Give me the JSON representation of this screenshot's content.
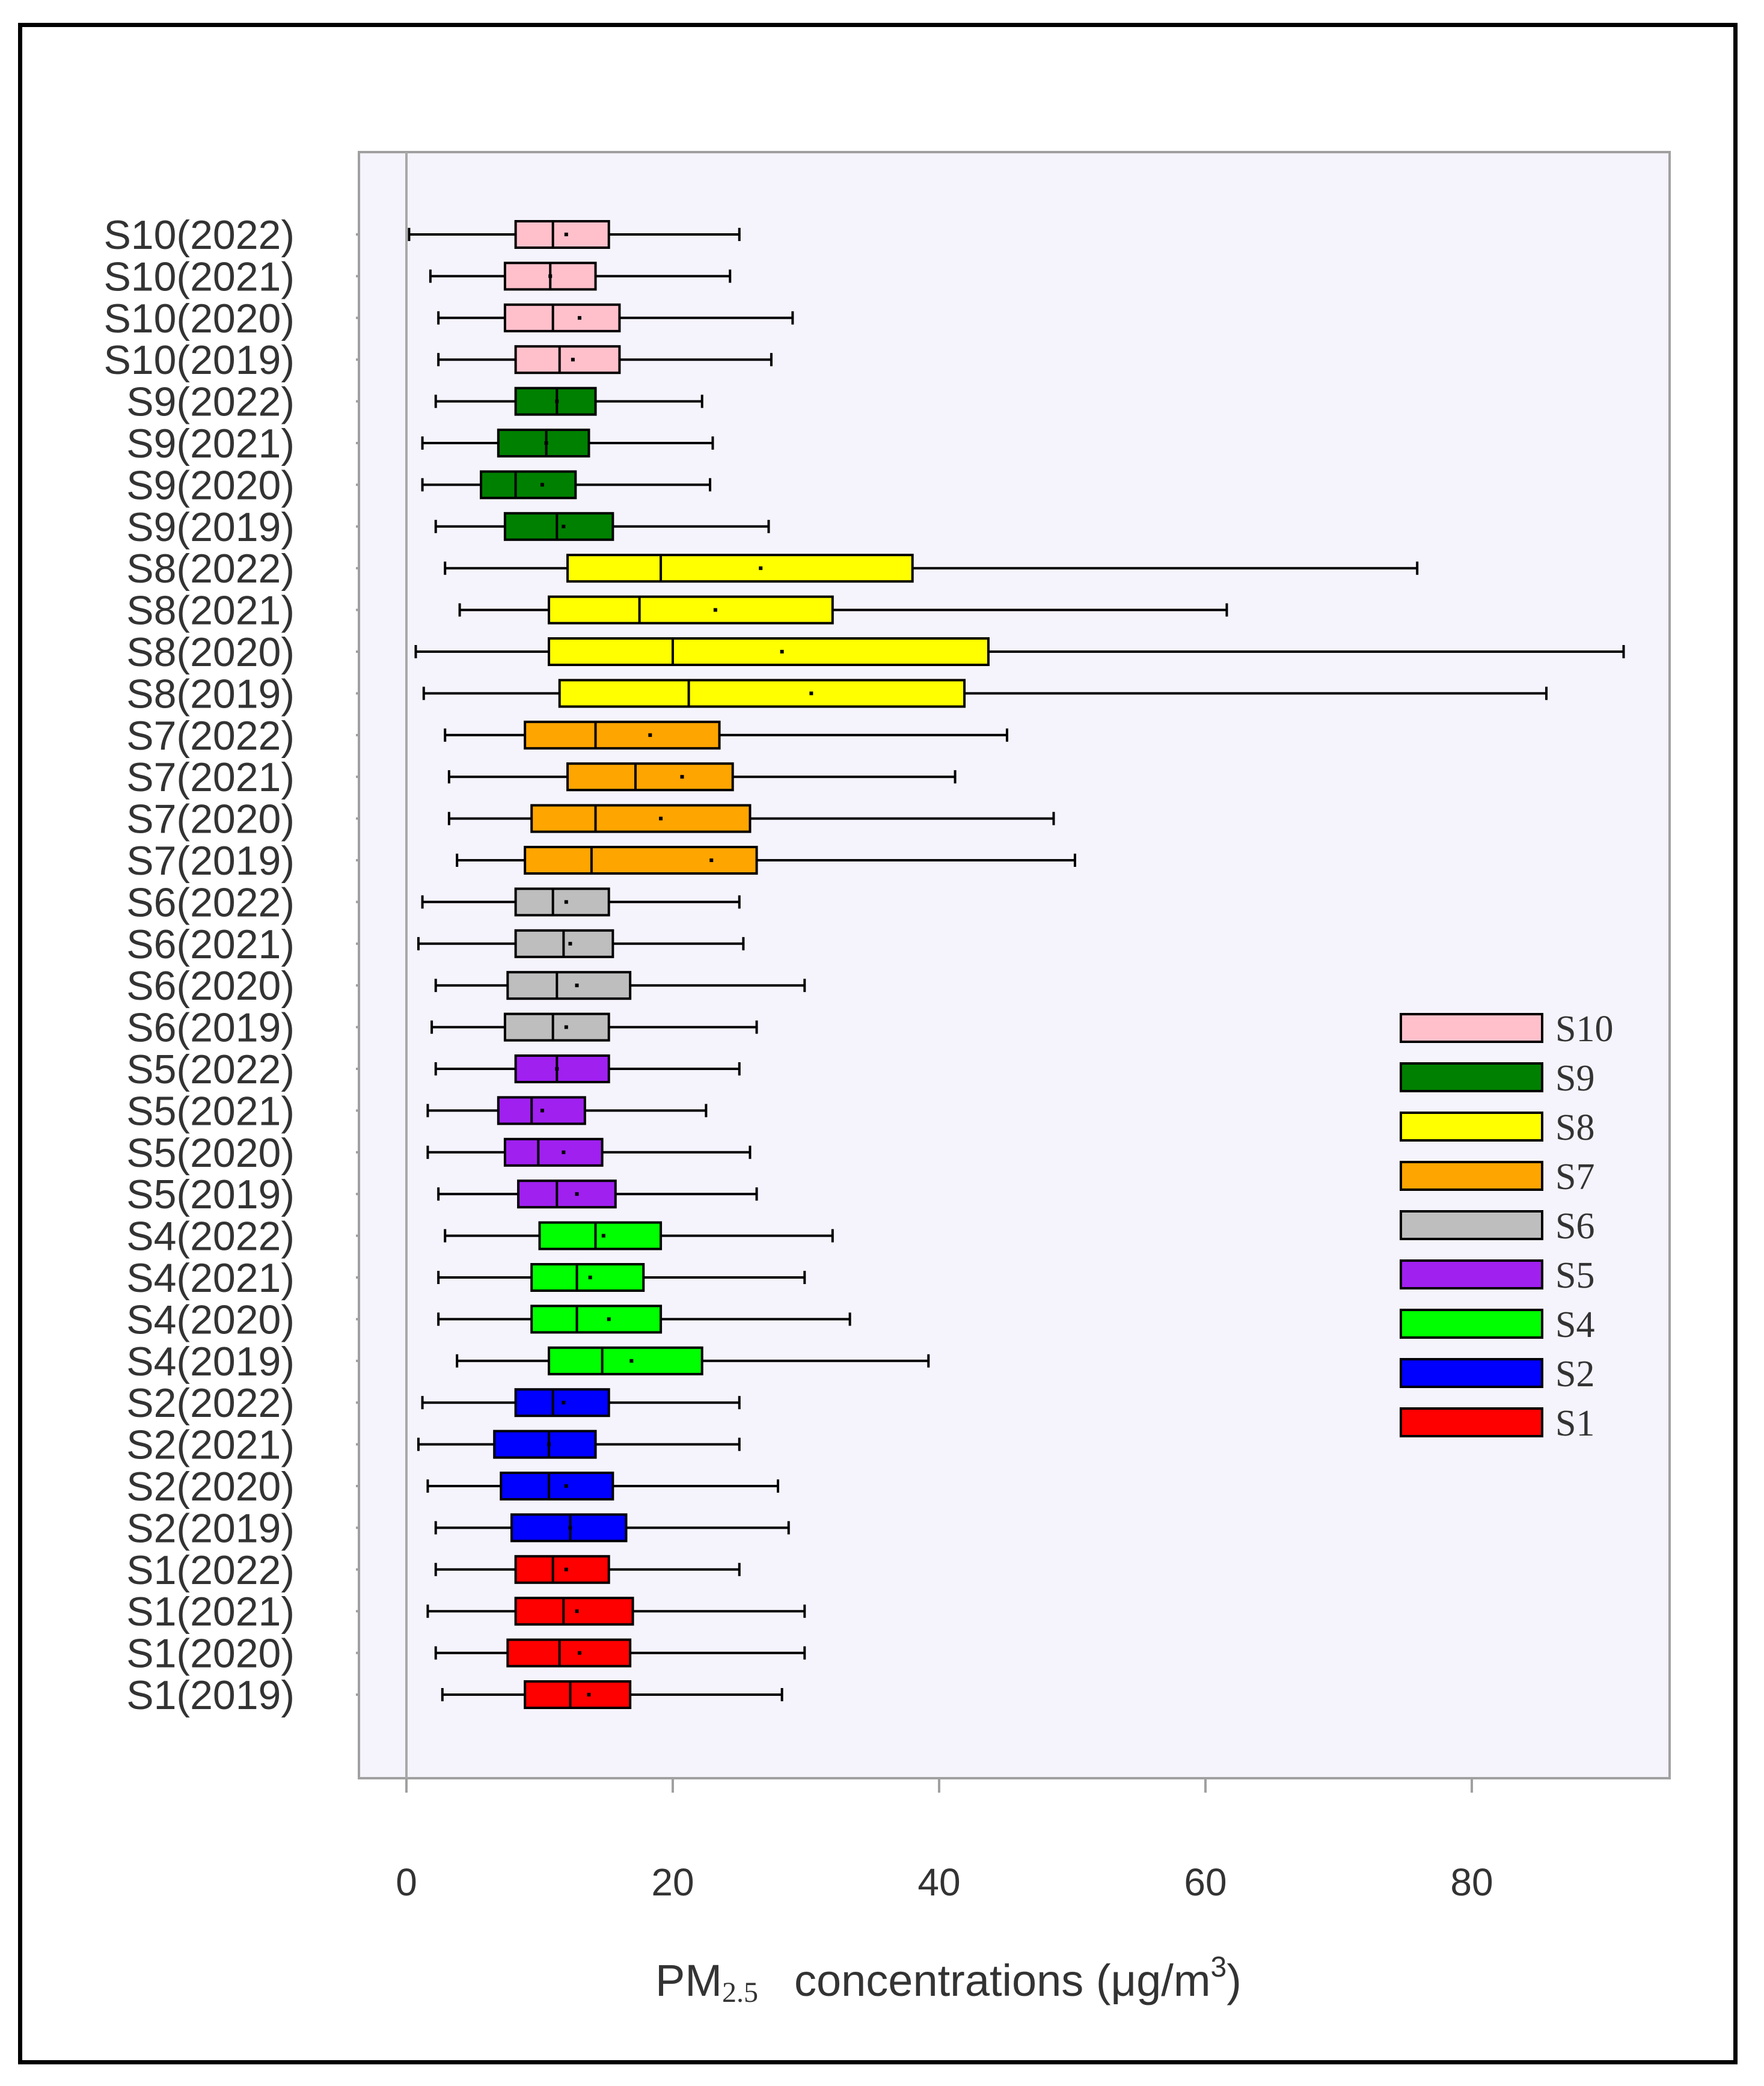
{
  "chart_data": {
    "type": "boxplot",
    "orientation": "horizontal",
    "xlabel": {
      "prefix": "PM",
      "subscript": "2.5",
      "text": "concentrations (μg/m",
      "superscript": "3",
      "suffix": ")"
    },
    "xlim": [
      0,
      92
    ],
    "xticks": [
      0,
      20,
      40,
      60,
      80
    ],
    "grid": false,
    "legend_position": "right",
    "legend": [
      {
        "name": "S10",
        "color": "#FFC0CB"
      },
      {
        "name": "S9",
        "color": "#008000"
      },
      {
        "name": "S8",
        "color": "#FFFF00"
      },
      {
        "name": "S7",
        "color": "#FFA500"
      },
      {
        "name": "S6",
        "color": "#BEBEBE"
      },
      {
        "name": "S5",
        "color": "#A020F0"
      },
      {
        "name": "S4",
        "color": "#00FF00"
      },
      {
        "name": "S2",
        "color": "#0000FF"
      },
      {
        "name": "S1",
        "color": "#FF0000"
      }
    ],
    "boxes": [
      {
        "label": "S10(2022)",
        "site": "S10",
        "min": 0.2,
        "q1": 8.2,
        "median": 11.0,
        "mean": 12.0,
        "q3": 15.2,
        "max": 25.0
      },
      {
        "label": "S10(2021)",
        "site": "S10",
        "min": 1.8,
        "q1": 7.4,
        "median": 10.8,
        "mean": 10.8,
        "q3": 14.2,
        "max": 24.3
      },
      {
        "label": "S10(2020)",
        "site": "S10",
        "min": 2.4,
        "q1": 7.4,
        "median": 11.0,
        "mean": 13.0,
        "q3": 16.0,
        "max": 29.0
      },
      {
        "label": "S10(2019)",
        "site": "S10",
        "min": 2.4,
        "q1": 8.2,
        "median": 11.5,
        "mean": 12.5,
        "q3": 16.0,
        "max": 27.4
      },
      {
        "label": "S9(2022)",
        "site": "S9",
        "min": 2.2,
        "q1": 8.2,
        "median": 11.3,
        "mean": 11.3,
        "q3": 14.2,
        "max": 22.2
      },
      {
        "label": "S9(2021)",
        "site": "S9",
        "min": 1.2,
        "q1": 6.9,
        "median": 10.5,
        "mean": 10.5,
        "q3": 13.7,
        "max": 23.0
      },
      {
        "label": "S9(2020)",
        "site": "S9",
        "min": 1.2,
        "q1": 5.6,
        "median": 8.2,
        "mean": 10.2,
        "q3": 12.7,
        "max": 22.8
      },
      {
        "label": "S9(2019)",
        "site": "S9",
        "min": 2.2,
        "q1": 7.4,
        "median": 11.3,
        "mean": 11.8,
        "q3": 15.5,
        "max": 27.2
      },
      {
        "label": "S8(2022)",
        "site": "S8",
        "min": 2.9,
        "q1": 12.1,
        "median": 19.1,
        "mean": 26.6,
        "q3": 38.0,
        "max": 75.9
      },
      {
        "label": "S8(2021)",
        "site": "S8",
        "min": 4.0,
        "q1": 10.7,
        "median": 17.5,
        "mean": 23.2,
        "q3": 32.0,
        "max": 61.6
      },
      {
        "label": "S8(2020)",
        "site": "S8",
        "min": 0.7,
        "q1": 10.7,
        "median": 20.0,
        "mean": 28.2,
        "q3": 43.7,
        "max": 91.4
      },
      {
        "label": "S8(2019)",
        "site": "S8",
        "min": 1.3,
        "q1": 11.5,
        "median": 21.2,
        "mean": 30.4,
        "q3": 41.9,
        "max": 85.6
      },
      {
        "label": "S7(2022)",
        "site": "S7",
        "min": 2.9,
        "q1": 8.9,
        "median": 14.2,
        "mean": 18.3,
        "q3": 23.5,
        "max": 45.1
      },
      {
        "label": "S7(2021)",
        "site": "S7",
        "min": 3.2,
        "q1": 12.1,
        "median": 17.2,
        "mean": 20.7,
        "q3": 24.5,
        "max": 41.2
      },
      {
        "label": "S7(2020)",
        "site": "S7",
        "min": 3.2,
        "q1": 9.4,
        "median": 14.2,
        "mean": 19.1,
        "q3": 25.8,
        "max": 48.6
      },
      {
        "label": "S7(2019)",
        "site": "S7",
        "min": 3.8,
        "q1": 8.9,
        "median": 13.9,
        "mean": 22.9,
        "q3": 26.3,
        "max": 50.2
      },
      {
        "label": "S6(2022)",
        "site": "S6",
        "min": 1.2,
        "q1": 8.2,
        "median": 11.0,
        "mean": 12.0,
        "q3": 15.2,
        "max": 25.0
      },
      {
        "label": "S6(2021)",
        "site": "S6",
        "min": 0.9,
        "q1": 8.2,
        "median": 11.8,
        "mean": 12.3,
        "q3": 15.5,
        "max": 25.3
      },
      {
        "label": "S6(2020)",
        "site": "S6",
        "min": 2.2,
        "q1": 7.6,
        "median": 11.3,
        "mean": 12.8,
        "q3": 16.8,
        "max": 29.9
      },
      {
        "label": "S6(2019)",
        "site": "S6",
        "min": 1.9,
        "q1": 7.4,
        "median": 11.0,
        "mean": 12.0,
        "q3": 15.2,
        "max": 26.3
      },
      {
        "label": "S5(2022)",
        "site": "S5",
        "min": 2.2,
        "q1": 8.2,
        "median": 11.3,
        "mean": 11.3,
        "q3": 15.2,
        "max": 25.0
      },
      {
        "label": "S5(2021)",
        "site": "S5",
        "min": 1.6,
        "q1": 6.9,
        "median": 9.4,
        "mean": 10.2,
        "q3": 13.4,
        "max": 22.5
      },
      {
        "label": "S5(2020)",
        "site": "S5",
        "min": 1.6,
        "q1": 7.4,
        "median": 9.9,
        "mean": 11.8,
        "q3": 14.7,
        "max": 25.8
      },
      {
        "label": "S5(2019)",
        "site": "S5",
        "min": 2.4,
        "q1": 8.4,
        "median": 11.3,
        "mean": 12.8,
        "q3": 15.7,
        "max": 26.3
      },
      {
        "label": "S4(2022)",
        "site": "S4",
        "min": 2.9,
        "q1": 10.0,
        "median": 14.2,
        "mean": 14.8,
        "q3": 19.1,
        "max": 32.0
      },
      {
        "label": "S4(2021)",
        "site": "S4",
        "min": 2.4,
        "q1": 9.4,
        "median": 12.8,
        "mean": 13.8,
        "q3": 17.8,
        "max": 29.9
      },
      {
        "label": "S4(2020)",
        "site": "S4",
        "min": 2.4,
        "q1": 9.4,
        "median": 12.8,
        "mean": 15.2,
        "q3": 19.1,
        "max": 33.3
      },
      {
        "label": "S4(2019)",
        "site": "S4",
        "min": 3.8,
        "q1": 10.7,
        "median": 14.7,
        "mean": 16.9,
        "q3": 22.2,
        "max": 39.2
      },
      {
        "label": "S2(2022)",
        "site": "S2",
        "min": 1.2,
        "q1": 8.2,
        "median": 11.0,
        "mean": 11.8,
        "q3": 15.2,
        "max": 25.0
      },
      {
        "label": "S2(2021)",
        "site": "S2",
        "min": 0.9,
        "q1": 6.6,
        "median": 10.7,
        "mean": 10.7,
        "q3": 14.2,
        "max": 25.0
      },
      {
        "label": "S2(2020)",
        "site": "S2",
        "min": 1.6,
        "q1": 7.1,
        "median": 10.7,
        "mean": 12.0,
        "q3": 15.5,
        "max": 27.9
      },
      {
        "label": "S2(2019)",
        "site": "S2",
        "min": 2.2,
        "q1": 7.9,
        "median": 12.3,
        "mean": 12.3,
        "q3": 16.5,
        "max": 28.7
      },
      {
        "label": "S1(2022)",
        "site": "S1",
        "min": 2.2,
        "q1": 8.2,
        "median": 11.0,
        "mean": 12.0,
        "q3": 15.2,
        "max": 25.0
      },
      {
        "label": "S1(2021)",
        "site": "S1",
        "min": 1.6,
        "q1": 8.2,
        "median": 11.8,
        "mean": 12.8,
        "q3": 17.0,
        "max": 29.9
      },
      {
        "label": "S1(2020)",
        "site": "S1",
        "min": 2.2,
        "q1": 7.6,
        "median": 11.5,
        "mean": 13.0,
        "q3": 16.8,
        "max": 29.9
      },
      {
        "label": "S1(2019)",
        "site": "S1",
        "min": 2.7,
        "q1": 8.9,
        "median": 12.3,
        "mean": 13.7,
        "q3": 16.8,
        "max": 28.2
      }
    ]
  }
}
